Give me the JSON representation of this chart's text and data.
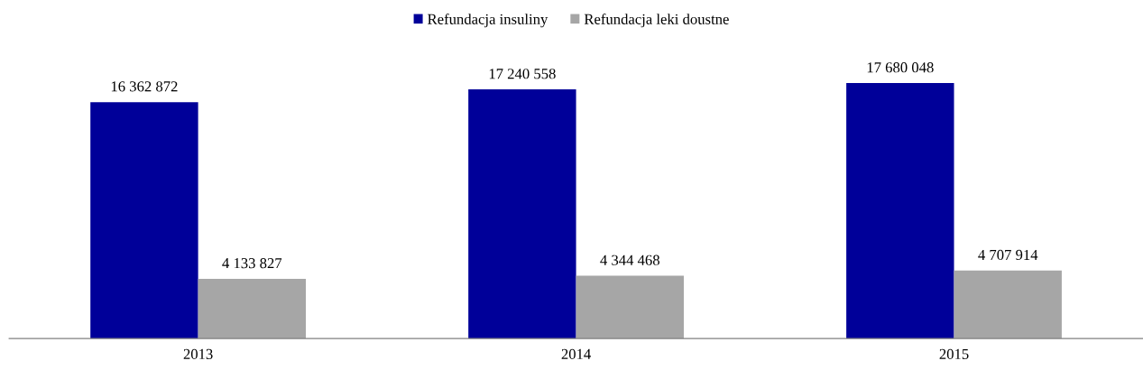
{
  "chart_data": {
    "type": "bar",
    "categories": [
      "2013",
      "2014",
      "2015"
    ],
    "series": [
      {
        "name": "Refundacja insuliny",
        "color": "#000099",
        "values": [
          16362872,
          17240558,
          17680048
        ],
        "value_labels": [
          "16 362 872",
          "17 240 558",
          "17 680 048"
        ]
      },
      {
        "name": "Refundacja leki doustne",
        "color": "#a6a6a6",
        "values": [
          4133827,
          4344468,
          4707914
        ],
        "value_labels": [
          "4 133 827",
          "4 344 468",
          "4 707 914"
        ]
      }
    ],
    "legend": "top",
    "grid": false
  }
}
